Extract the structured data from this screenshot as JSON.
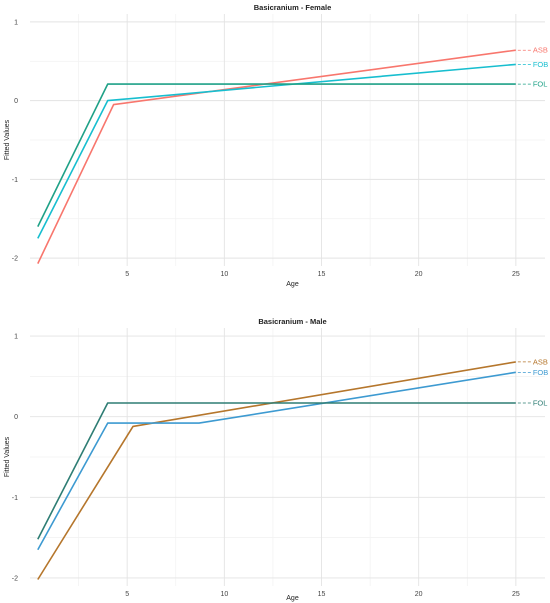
{
  "chart_data": [
    {
      "type": "line",
      "title": "Basicranium - Female",
      "xlabel": "Age",
      "ylabel": "Fitted Values",
      "xlim": [
        0,
        26.5
      ],
      "ylim": [
        -2.1,
        1.1
      ],
      "xticks": [
        5,
        10,
        15,
        20,
        25
      ],
      "yticks": [
        -2,
        -1,
        0,
        1
      ],
      "grid": true,
      "series": [
        {
          "name": "ASB",
          "color": "#f8766d",
          "x": [
            0.4,
            4.3,
            25
          ],
          "y": [
            -2.07,
            -0.05,
            0.64
          ]
        },
        {
          "name": "FOB",
          "color": "#17becf",
          "x": [
            0.4,
            4.0,
            25
          ],
          "y": [
            -1.75,
            0.0,
            0.46
          ]
        },
        {
          "name": "FOL",
          "color": "#1fa187",
          "x": [
            0.4,
            4.0,
            25
          ],
          "y": [
            -1.6,
            0.21,
            0.21
          ]
        }
      ]
    },
    {
      "type": "line",
      "title": "Basicranium - Male",
      "xlabel": "Age",
      "ylabel": "Fitted Values",
      "xlim": [
        0,
        26.5
      ],
      "ylim": [
        -2.1,
        1.1
      ],
      "xticks": [
        5,
        10,
        15,
        20,
        25
      ],
      "yticks": [
        -2,
        -1,
        0,
        1
      ],
      "grid": true,
      "series": [
        {
          "name": "ASB",
          "color": "#b5762c",
          "x": [
            0.4,
            5.3,
            25
          ],
          "y": [
            -2.02,
            -0.12,
            0.68
          ]
        },
        {
          "name": "FOB",
          "color": "#3d9ad1",
          "x": [
            0.4,
            4.0,
            8.7,
            25
          ],
          "y": [
            -1.65,
            -0.08,
            -0.08,
            0.55
          ]
        },
        {
          "name": "FOL",
          "color": "#2e7d74",
          "x": [
            0.4,
            4.0,
            25
          ],
          "y": [
            -1.52,
            0.17,
            0.17
          ]
        }
      ]
    }
  ]
}
